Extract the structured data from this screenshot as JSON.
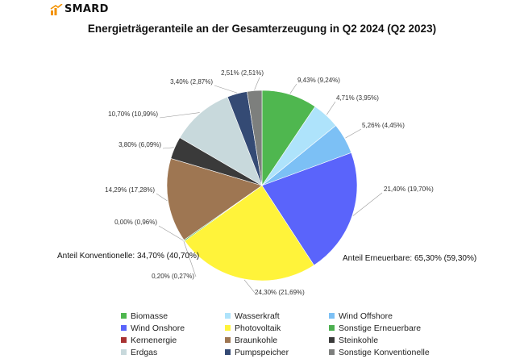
{
  "brand": {
    "name": "SMARD",
    "accent": "#f39200"
  },
  "chart_data": {
    "type": "pie",
    "title": "Energieträgeranteile an der Gesamterzeugung in Q2 2024 (Q2 2023)",
    "slices": [
      {
        "name": "Biomasse",
        "value": 9.43,
        "label": "9,43% (9,24%)",
        "color": "#4fb74f"
      },
      {
        "name": "Wasserkraft",
        "value": 4.71,
        "label": "4,71% (3,95%)",
        "color": "#aee3fb"
      },
      {
        "name": "Wind Offshore",
        "value": 5.26,
        "label": "5,26% (4,45%)",
        "color": "#7cc0f5"
      },
      {
        "name": "Wind Onshore",
        "value": 21.4,
        "label": "21,40% (19,70%)",
        "color": "#5a64fb"
      },
      {
        "name": "Photovoltaik",
        "value": 24.3,
        "label": "24,30% (21,69%)",
        "color": "#fff33a"
      },
      {
        "name": "Sonstige Erneuerbare",
        "value": 0.2,
        "label": "0,20% (0,27%)",
        "color": "#4caf50"
      },
      {
        "name": "Kernenergie",
        "value": 0.0,
        "label": "0,00% (0,96%)",
        "color": "#a83232"
      },
      {
        "name": "Braunkohle",
        "value": 14.29,
        "label": "14,29% (17,28%)",
        "color": "#9e7652"
      },
      {
        "name": "Steinkohle",
        "value": 3.8,
        "label": "3,80% (6,09%)",
        "color": "#3a3a3a"
      },
      {
        "name": "Erdgas",
        "value": 10.7,
        "label": "10,70% (10,99%)",
        "color": "#c8d9dc"
      },
      {
        "name": "Pumpspeicher",
        "value": 3.4,
        "label": "3,40% (2,87%)",
        "color": "#344a74"
      },
      {
        "name": "Sonstige Konventionelle",
        "value": 2.51,
        "label": "2,51% (2,51%)",
        "color": "#7d7f7d"
      }
    ],
    "groups": {
      "erneuerbare": "Anteil Erneuerbare: 65,30% (59,30%)",
      "konventionelle": "Anteil Konventionelle: 34,70% (40,70%)"
    },
    "legend_position": "bottom"
  }
}
